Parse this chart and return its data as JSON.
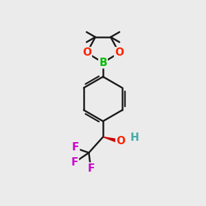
{
  "background_color": "#ebebeb",
  "bond_color": "#1a1a1a",
  "bond_width": 1.8,
  "atoms": {
    "B": {
      "color": "#00bb00",
      "fontsize": 11,
      "fontweight": "bold"
    },
    "O": {
      "color": "#ff2200",
      "fontsize": 11,
      "fontweight": "bold"
    },
    "F": {
      "color": "#cc00cc",
      "fontsize": 11,
      "fontweight": "bold"
    },
    "H": {
      "color": "#44aaaa",
      "fontsize": 11,
      "fontweight": "bold"
    }
  },
  "figsize": [
    3.0,
    3.0
  ],
  "dpi": 100
}
